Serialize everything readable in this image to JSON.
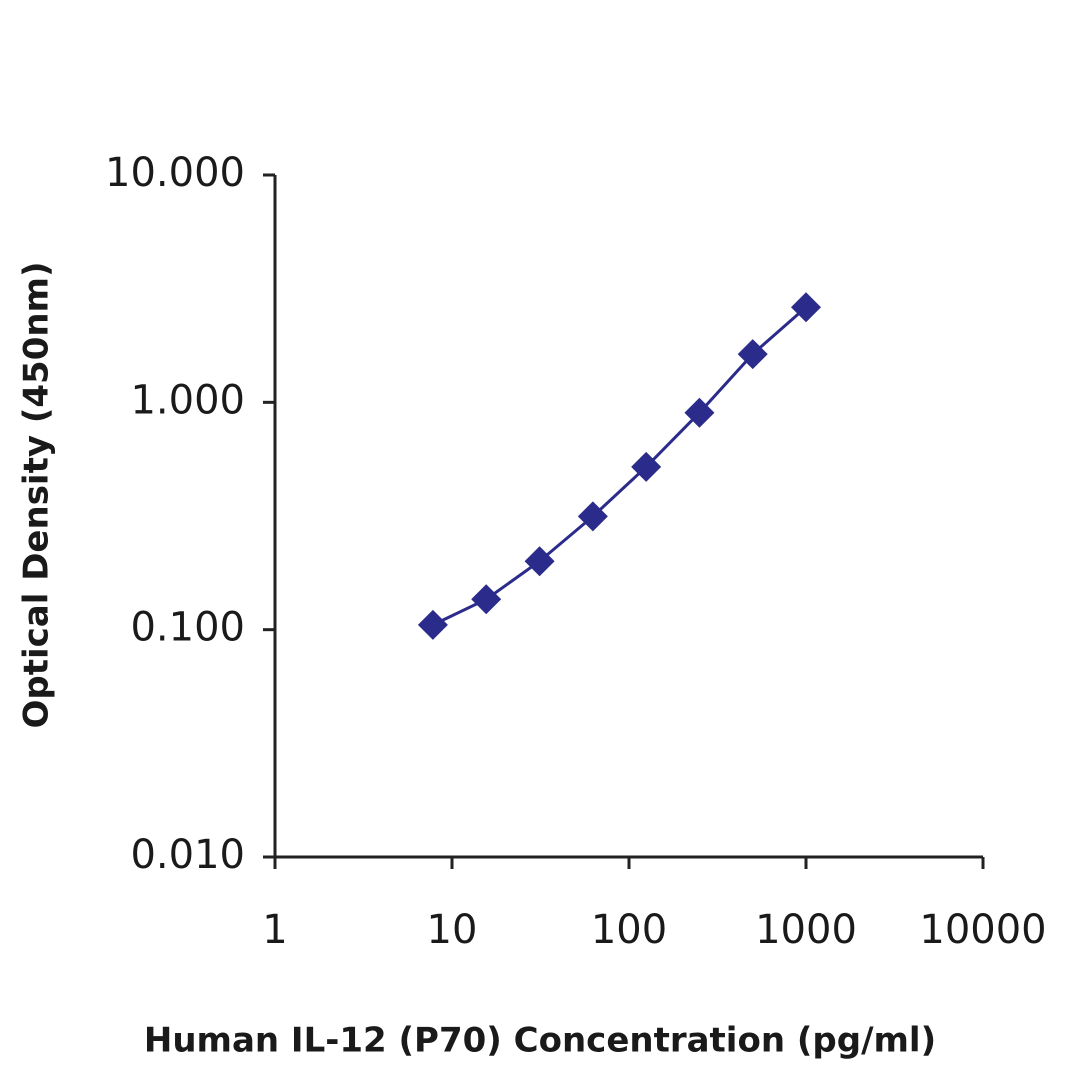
{
  "chart_data": {
    "type": "line",
    "x_label": "Human IL-12 (P70) Concentration (pg/ml)",
    "y_label": "Optical Density (450nm)",
    "x": [
      7.8,
      15.6,
      31.25,
      62.5,
      125,
      250,
      500,
      1000
    ],
    "series": [
      {
        "color": "#2b2b8c",
        "values": [
          0.105,
          0.136,
          0.2,
          0.315,
          0.52,
          0.9,
          1.63,
          2.62
        ]
      }
    ],
    "xscale": "log",
    "yscale": "log",
    "xlim": [
      1,
      10000
    ],
    "xticks": [
      1,
      10,
      100,
      1000,
      10000
    ],
    "ylim": [
      0.01,
      10
    ],
    "yticks": [
      {
        "value": 0.01,
        "label": "0.010"
      },
      {
        "value": 0.1,
        "label": "0.100"
      },
      {
        "value": 1,
        "label": "1.000"
      },
      {
        "value": 10,
        "label": "10.000"
      }
    ]
  }
}
